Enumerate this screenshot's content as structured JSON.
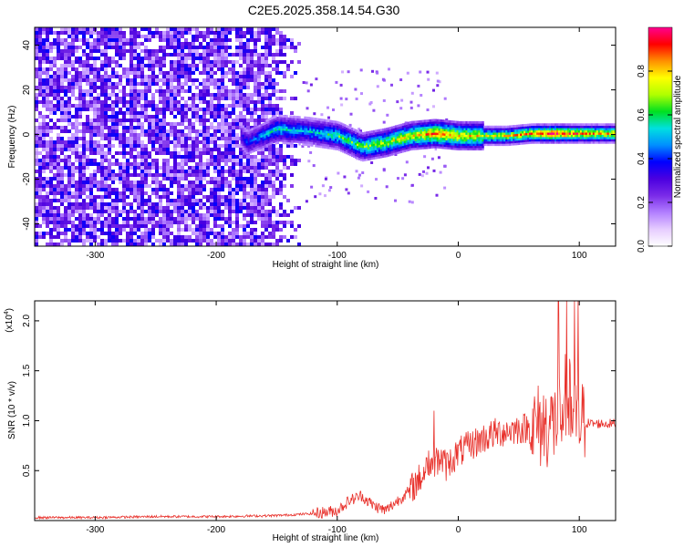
{
  "title": "C2E5.2025.358.14.54.G30",
  "chart_data": [
    {
      "type": "heatmap",
      "xlabel": "Height of straight line (km)",
      "ylabel": "Frequency (Hz)",
      "xlim": [
        -350,
        130
      ],
      "ylim": [
        -50,
        48
      ],
      "xticks": [
        -300,
        -200,
        -100,
        0,
        100
      ],
      "yticks": [
        -40,
        -20,
        0,
        20,
        40
      ],
      "colorbar": {
        "label": "Normalized spectral amplitude",
        "range": [
          0,
          1
        ],
        "ticks": [
          "0.0",
          "0.2",
          "0.4",
          "0.6",
          "0.8"
        ],
        "tick_values": [
          0,
          0.2,
          0.4,
          0.6,
          0.8
        ],
        "colors": [
          "#ffffff",
          "#e6ccff",
          "#b27fff",
          "#7a2be8",
          "#4b00e0",
          "#0000ff",
          "#0090ff",
          "#00e0e0",
          "#00e020",
          "#b0ff00",
          "#ffff00",
          "#ff9000",
          "#ff0000",
          "#ff0090"
        ]
      },
      "noise_region_x": [
        -350,
        -130
      ],
      "signal_ridge": [
        {
          "x": -180,
          "freq": 0,
          "amp": 0.35
        },
        {
          "x": -175,
          "freq": -3,
          "amp": 0.4
        },
        {
          "x": -150,
          "freq": 3,
          "amp": 0.55
        },
        {
          "x": -125,
          "freq": 2,
          "amp": 0.5
        },
        {
          "x": -100,
          "freq": 0,
          "amp": 0.6
        },
        {
          "x": -80,
          "freq": -5,
          "amp": 0.65
        },
        {
          "x": -60,
          "freq": -3,
          "amp": 0.7
        },
        {
          "x": -40,
          "freq": 0,
          "amp": 0.75
        },
        {
          "x": -20,
          "freq": 1,
          "amp": 0.85
        },
        {
          "x": 0,
          "freq": 0,
          "amp": 0.8
        },
        {
          "x": 20,
          "freq": 0,
          "amp": 0.75
        },
        {
          "x": 40,
          "freq": 0,
          "amp": 0.75
        },
        {
          "x": 60,
          "freq": 1,
          "amp": 0.85
        },
        {
          "x": 80,
          "freq": 1,
          "amp": 0.95
        },
        {
          "x": 100,
          "freq": 1,
          "amp": 0.85
        },
        {
          "x": 120,
          "freq": 1,
          "amp": 0.8
        },
        {
          "x": 130,
          "freq": 1,
          "amp": 0.8
        }
      ]
    },
    {
      "type": "line",
      "xlabel": "Height of straight line (km)",
      "ylabel": "SNR (10 * v/v)",
      "y_multiplier_label": "(x10",
      "y_multiplier_exp": "4",
      "y_multiplier_close": ")",
      "xlim": [
        -350,
        130
      ],
      "ylim": [
        0,
        2.2
      ],
      "xticks": [
        -300,
        -200,
        -100,
        0,
        100
      ],
      "yticks": [
        0.5,
        1.0,
        1.5,
        2.0
      ],
      "ytick_labels": [
        "0.5",
        "1.0",
        "1.5",
        "2.0"
      ],
      "series": [
        {
          "color": "#e8302a",
          "x": [
            -350,
            -300,
            -250,
            -200,
            -150,
            -120,
            -100,
            -90,
            -80,
            -70,
            -60,
            -50,
            -40,
            -30,
            -25,
            -20,
            -15,
            -10,
            0,
            10,
            20,
            30,
            40,
            50,
            60,
            70,
            80,
            85,
            90,
            95,
            100,
            105,
            110,
            120,
            130
          ],
          "y": [
            0.03,
            0.03,
            0.04,
            0.04,
            0.05,
            0.07,
            0.1,
            0.2,
            0.25,
            0.15,
            0.1,
            0.2,
            0.3,
            0.45,
            0.6,
            0.55,
            0.62,
            0.55,
            0.68,
            0.75,
            0.82,
            0.87,
            0.9,
            0.92,
            0.93,
            0.95,
            0.97,
            1.1,
            1.3,
            1.0,
            0.97,
            0.98,
            0.97,
            0.97,
            0.97
          ]
        }
      ]
    }
  ]
}
